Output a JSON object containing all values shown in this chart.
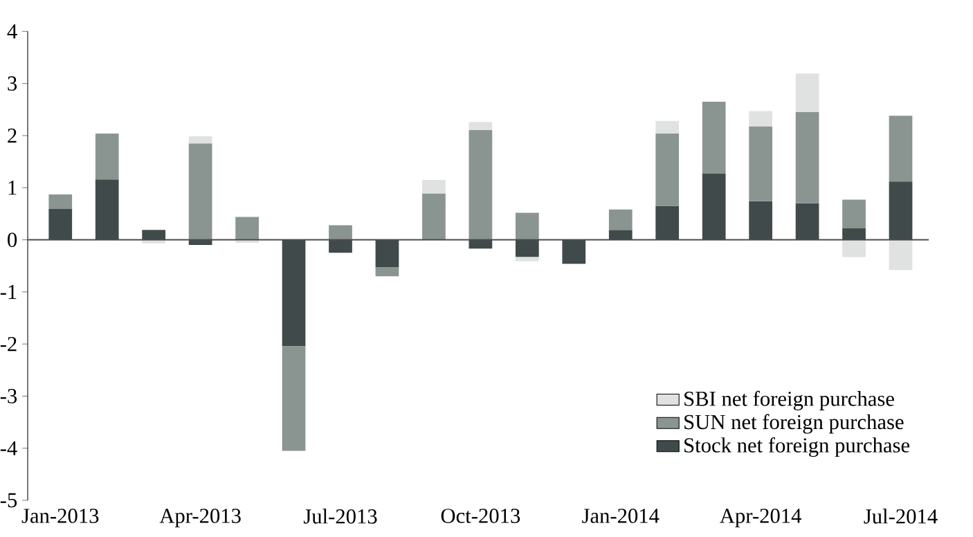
{
  "chart_data": {
    "type": "bar",
    "stacked": true,
    "categories": [
      "Jan-2013",
      null,
      null,
      "Apr-2013",
      null,
      null,
      "Jul-2013",
      null,
      null,
      "Oct-2013",
      null,
      null,
      "Jan-2014",
      null,
      null,
      "Apr-2014",
      null,
      null,
      "Jul-2014"
    ],
    "series": [
      {
        "name": "Stock net foreign purchase",
        "color": "#414a4a",
        "values": [
          0.59,
          1.16,
          0.19,
          -0.1,
          0,
          -2.04,
          -0.25,
          -0.53,
          null,
          -0.17,
          -0.33,
          -0.46,
          0.19,
          0.65,
          1.27,
          0.74,
          0.7,
          0.22,
          1.12
        ]
      },
      {
        "name": "SUN net foreign purchase",
        "color": "#8a9591",
        "values": [
          0.28,
          0.88,
          0,
          1.85,
          0.44,
          -2.01,
          0.28,
          -0.17,
          0.89,
          2.11,
          0.52,
          0,
          0.39,
          1.39,
          1.38,
          1.44,
          1.75,
          0.55,
          1.26
        ]
      },
      {
        "name": "SBI net foreign purchase",
        "color": "#e0e2e1",
        "values": [
          0,
          0,
          -0.07,
          0.14,
          -0.06,
          0,
          0,
          0,
          0.26,
          0.15,
          -0.08,
          null,
          0,
          0.24,
          0,
          0.29,
          0.74,
          -0.33,
          -0.58
        ]
      }
    ],
    "ylim": [
      -5,
      4
    ],
    "yticks": [
      -5,
      -4,
      -3,
      -2,
      -1,
      0,
      1,
      2,
      3,
      4
    ],
    "legend": "bottom right"
  }
}
